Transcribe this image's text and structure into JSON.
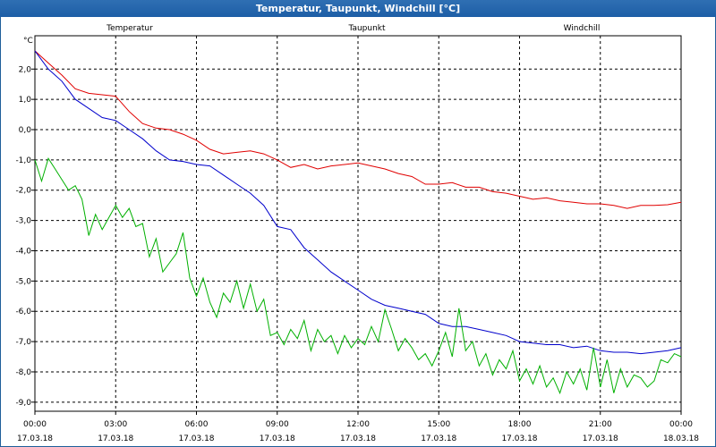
{
  "window": {
    "title": "Temperatur, Taupunkt, Windchill [°C]"
  },
  "chart_data": {
    "type": "line",
    "title": "Temperatur, Taupunkt, Windchill [°C]",
    "ylabel": "°C",
    "ylim": [
      -9.3,
      3.1
    ],
    "yticks": [
      2.0,
      1.0,
      0.0,
      -1.0,
      -2.0,
      -3.0,
      -4.0,
      -5.0,
      -6.0,
      -7.0,
      -8.0,
      -9.0
    ],
    "ytick_labels": [
      "2,0",
      "1,0",
      "0,0",
      "-1,0",
      "-2,0",
      "-3,0",
      "-4,0",
      "-5,0",
      "-6,0",
      "-7,0",
      "-8,0",
      "-9,0"
    ],
    "x_range_hours": [
      0,
      24
    ],
    "xticks": [
      {
        "t": 0,
        "time": "00:00",
        "date": "17.03.18"
      },
      {
        "t": 3,
        "time": "03:00",
        "date": "17.03.18"
      },
      {
        "t": 6,
        "time": "06:00",
        "date": "17.03.18"
      },
      {
        "t": 9,
        "time": "09:00",
        "date": "17.03.18"
      },
      {
        "t": 12,
        "time": "12:00",
        "date": "17.03.18"
      },
      {
        "t": 15,
        "time": "15:00",
        "date": "17.03.18"
      },
      {
        "t": 18,
        "time": "18:00",
        "date": "17.03.18"
      },
      {
        "t": 21,
        "time": "21:00",
        "date": "17.03.18"
      },
      {
        "t": 24,
        "time": "00:00",
        "date": "18.03.18"
      }
    ],
    "grid": true,
    "legend": "top",
    "series": [
      {
        "name": "Temperatur",
        "color": "#e00000",
        "x": [
          0,
          0.5,
          1,
          1.5,
          2,
          2.5,
          3,
          3.5,
          4,
          4.5,
          5,
          5.5,
          6,
          6.5,
          7,
          7.5,
          8,
          8.5,
          9,
          9.5,
          10,
          10.5,
          11,
          11.5,
          12,
          12.5,
          13,
          13.5,
          14,
          14.5,
          15,
          15.5,
          16,
          16.5,
          17,
          17.5,
          18,
          18.5,
          19,
          19.5,
          20,
          20.5,
          21,
          21.5,
          22,
          22.5,
          23,
          23.5,
          24
        ],
        "values": [
          2.6,
          2.2,
          1.8,
          1.35,
          1.2,
          1.15,
          1.1,
          0.6,
          0.2,
          0.05,
          0.0,
          -0.15,
          -0.35,
          -0.65,
          -0.8,
          -0.75,
          -0.7,
          -0.8,
          -1.0,
          -1.25,
          -1.15,
          -1.3,
          -1.2,
          -1.15,
          -1.1,
          -1.2,
          -1.3,
          -1.45,
          -1.55,
          -1.8,
          -1.8,
          -1.75,
          -1.9,
          -1.9,
          -2.05,
          -2.1,
          -2.2,
          -2.3,
          -2.25,
          -2.35,
          -2.4,
          -2.45,
          -2.45,
          -2.5,
          -2.6,
          -2.5,
          -2.5,
          -2.48,
          -2.4
        ]
      },
      {
        "name": "Taupunkt",
        "color": "#0000cc",
        "x": [
          0,
          0.5,
          1,
          1.5,
          2,
          2.5,
          3,
          3.5,
          4,
          4.5,
          5,
          5.5,
          6,
          6.5,
          7,
          7.5,
          8,
          8.5,
          9,
          9.5,
          10,
          10.5,
          11,
          11.5,
          12,
          12.5,
          13,
          13.5,
          14,
          14.5,
          15,
          15.5,
          16,
          16.5,
          17,
          17.5,
          18,
          18.5,
          19,
          19.5,
          20,
          20.5,
          21,
          21.5,
          22,
          22.5,
          23,
          23.5,
          24
        ],
        "values": [
          2.6,
          2.0,
          1.6,
          1.0,
          0.7,
          0.4,
          0.3,
          0.0,
          -0.3,
          -0.7,
          -1.0,
          -1.05,
          -1.15,
          -1.2,
          -1.5,
          -1.8,
          -2.1,
          -2.5,
          -3.2,
          -3.3,
          -3.9,
          -4.3,
          -4.7,
          -5.0,
          -5.3,
          -5.6,
          -5.8,
          -5.9,
          -6.0,
          -6.1,
          -6.4,
          -6.5,
          -6.5,
          -6.6,
          -6.7,
          -6.8,
          -7.0,
          -7.05,
          -7.1,
          -7.1,
          -7.2,
          -7.15,
          -7.3,
          -7.35,
          -7.35,
          -7.4,
          -7.35,
          -7.3,
          -7.2
        ]
      },
      {
        "name": "Windchill",
        "color": "#00b000",
        "x": [
          0,
          0.25,
          0.5,
          0.75,
          1,
          1.25,
          1.5,
          1.75,
          2,
          2.25,
          2.5,
          2.75,
          3,
          3.25,
          3.5,
          3.75,
          4,
          4.25,
          4.5,
          4.75,
          5,
          5.25,
          5.5,
          5.75,
          6,
          6.25,
          6.5,
          6.75,
          7,
          7.25,
          7.5,
          7.75,
          8,
          8.25,
          8.5,
          8.75,
          9,
          9.25,
          9.5,
          9.75,
          10,
          10.25,
          10.5,
          10.75,
          11,
          11.25,
          11.5,
          11.75,
          12,
          12.25,
          12.5,
          12.75,
          13,
          13.25,
          13.5,
          13.75,
          14,
          14.25,
          14.5,
          14.75,
          15,
          15.25,
          15.5,
          15.75,
          16,
          16.25,
          16.5,
          16.75,
          17,
          17.25,
          17.5,
          17.75,
          18,
          18.25,
          18.5,
          18.75,
          19,
          19.25,
          19.5,
          19.75,
          20,
          20.25,
          20.5,
          20.75,
          21,
          21.25,
          21.5,
          21.75,
          22,
          22.25,
          22.5,
          22.75,
          23,
          23.25,
          23.5,
          23.75,
          24
        ],
        "values": [
          -1.0,
          -1.7,
          -0.95,
          -1.3,
          -1.65,
          -2.0,
          -1.85,
          -2.3,
          -3.5,
          -2.8,
          -3.3,
          -2.9,
          -2.5,
          -2.9,
          -2.6,
          -3.2,
          -3.1,
          -4.2,
          -3.6,
          -4.7,
          -4.4,
          -4.1,
          -3.4,
          -4.9,
          -5.5,
          -4.9,
          -5.7,
          -6.2,
          -5.4,
          -5.7,
          -5.0,
          -5.9,
          -5.1,
          -6.0,
          -5.6,
          -6.8,
          -6.7,
          -7.1,
          -6.6,
          -6.9,
          -6.3,
          -7.3,
          -6.6,
          -7.0,
          -6.8,
          -7.4,
          -6.8,
          -7.2,
          -6.9,
          -7.1,
          -6.5,
          -7.0,
          -5.95,
          -6.6,
          -7.3,
          -6.9,
          -7.2,
          -7.6,
          -7.4,
          -7.8,
          -7.3,
          -6.7,
          -7.5,
          -5.9,
          -7.3,
          -7.0,
          -7.8,
          -7.4,
          -8.1,
          -7.6,
          -7.9,
          -7.3,
          -8.3,
          -7.9,
          -8.4,
          -7.8,
          -8.5,
          -8.2,
          -8.7,
          -8.0,
          -8.4,
          -7.9,
          -8.6,
          -7.2,
          -8.5,
          -7.6,
          -8.7,
          -7.9,
          -8.5,
          -8.1,
          -8.2,
          -8.5,
          -8.3,
          -7.6,
          -7.7,
          -7.4,
          -7.5
        ]
      }
    ]
  }
}
